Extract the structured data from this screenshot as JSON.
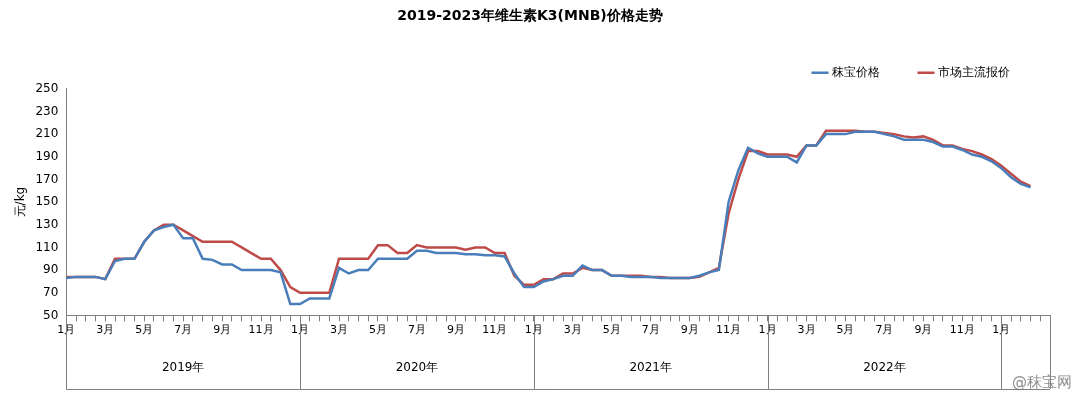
{
  "chart_data": {
    "type": "line",
    "title": "2019-2023年维生素K3(MNB)价格走势",
    "y_label": "元/kg",
    "categories": [
      "1月",
      null,
      null,
      null,
      "3月",
      null,
      null,
      null,
      "5月",
      null,
      null,
      null,
      "7月",
      null,
      null,
      null,
      "9月",
      null,
      null,
      null,
      "11月",
      null,
      null,
      null,
      "1月",
      null,
      null,
      null,
      "3月",
      null,
      null,
      null,
      "5月",
      null,
      null,
      null,
      "7月",
      null,
      null,
      null,
      "9月",
      null,
      null,
      null,
      "11月",
      null,
      null,
      null,
      "1月",
      null,
      null,
      null,
      "3月",
      null,
      null,
      null,
      "5月",
      null,
      null,
      null,
      "7月",
      null,
      null,
      null,
      "9月",
      null,
      null,
      null,
      "11月",
      null,
      null,
      null,
      "1月",
      null,
      null,
      null,
      "3月",
      null,
      null,
      null,
      "5月",
      null,
      null,
      null,
      "7月",
      null,
      null,
      null,
      "9月",
      null,
      null,
      null,
      "11月",
      null,
      null,
      null,
      "1月",
      null,
      null,
      null,
      null,
      null
    ],
    "year_labels": [
      null,
      null,
      null,
      null,
      null,
      null,
      null,
      null,
      null,
      null,
      null,
      null,
      "2019年",
      null,
      null,
      null,
      null,
      null,
      null,
      null,
      null,
      null,
      null,
      null,
      null,
      null,
      null,
      null,
      null,
      null,
      null,
      null,
      null,
      null,
      null,
      null,
      "2020年",
      null,
      null,
      null,
      null,
      null,
      null,
      null,
      null,
      null,
      null,
      null,
      null,
      null,
      null,
      null,
      null,
      null,
      null,
      null,
      null,
      null,
      null,
      null,
      "2021年",
      null,
      null,
      null,
      null,
      null,
      null,
      null,
      null,
      null,
      null,
      null,
      null,
      null,
      null,
      null,
      null,
      null,
      null,
      null,
      null,
      null,
      null,
      null,
      "2022年",
      null,
      null,
      null,
      null,
      null,
      null,
      null,
      null,
      null,
      null,
      null,
      null,
      null,
      null,
      null,
      null,
      null
    ],
    "series": [
      {
        "name": "秣宝价格",
        "color": "#4a7ebb",
        "marker": "none",
        "line_style": "solid",
        "values": [
          83,
          84,
          84,
          84,
          82,
          98,
          100,
          100,
          115,
          125,
          128,
          130,
          118,
          118,
          100,
          99,
          95,
          95,
          90,
          90,
          90,
          90,
          88,
          60,
          60,
          65,
          65,
          65,
          92,
          87,
          90,
          90,
          100,
          100,
          100,
          100,
          107,
          107,
          105,
          105,
          105,
          104,
          104,
          103,
          103,
          102,
          87,
          75,
          75,
          80,
          82,
          85,
          85,
          94,
          90,
          90,
          85,
          85,
          84,
          84,
          84,
          83,
          83,
          83,
          83,
          85,
          88,
          90,
          150,
          178,
          198,
          193,
          190,
          190,
          190,
          185,
          200,
          200,
          210,
          210,
          210,
          212,
          212,
          212,
          210,
          208,
          205,
          205,
          205,
          203,
          199,
          199,
          196,
          192,
          190,
          186,
          180,
          172,
          166,
          163,
          null,
          null
        ]
      },
      {
        "name": "市场主流报价",
        "color": "#be4b48",
        "marker": "none",
        "line_style": "solid",
        "values": [
          84,
          84,
          84,
          84,
          82,
          100,
          100,
          100,
          115,
          125,
          130,
          130,
          125,
          120,
          115,
          115,
          115,
          115,
          110,
          105,
          100,
          100,
          90,
          75,
          70,
          70,
          70,
          70,
          100,
          100,
          100,
          100,
          112,
          112,
          105,
          105,
          112,
          110,
          110,
          110,
          110,
          108,
          110,
          110,
          105,
          105,
          85,
          77,
          77,
          82,
          82,
          87,
          87,
          92,
          90,
          90,
          85,
          85,
          85,
          85,
          84,
          84,
          83,
          83,
          83,
          84,
          88,
          92,
          140,
          170,
          195,
          195,
          192,
          192,
          192,
          190,
          200,
          200,
          213,
          213,
          213,
          213,
          212,
          212,
          211,
          210,
          208,
          207,
          208,
          205,
          200,
          200,
          197,
          195,
          192,
          188,
          182,
          175,
          168,
          164,
          null,
          null
        ]
      }
    ],
    "ylim": [
      50,
      250
    ],
    "yticks": [
      50,
      70,
      90,
      110,
      130,
      150,
      170,
      190,
      210,
      230,
      250
    ],
    "grid": false,
    "legend": "top-right",
    "annotations": [
      "@秣宝网"
    ]
  }
}
